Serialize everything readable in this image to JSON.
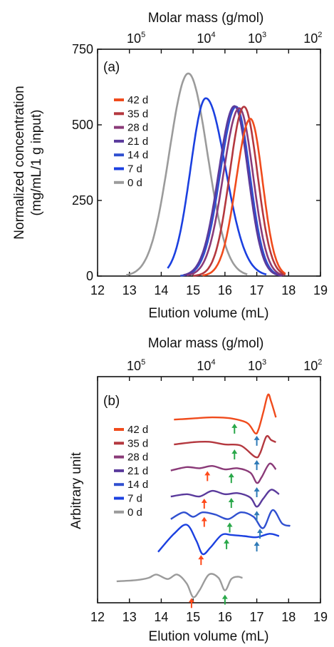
{
  "colors": {
    "42 d": "#f04b1c",
    "35 d": "#b4383f",
    "28 d": "#8a3a78",
    "21 d": "#5a3a9c",
    "14 d": "#3050d0",
    "7 d": "#1b40e0",
    "0 d": "#9b9b9b",
    "arrow_orange": "#ff4a1a",
    "arrow_green": "#2aa84a",
    "arrow_blue": "#2f7bb8"
  },
  "chart_data": [
    {
      "id": "a",
      "type": "line",
      "panel_label": "(a)",
      "xlabel": "Elution volume (mL)",
      "ylabel_line1": "Normalized concentration",
      "ylabel_line2": "(mg/mL/1 g input)",
      "top_axis_label": "Molar mass (g/mol)",
      "top_ticks": [
        {
          "base": "10",
          "exp": "5",
          "x": 13.3
        },
        {
          "base": "10",
          "exp": "4",
          "x": 15.5
        },
        {
          "base": "10",
          "exp": "3",
          "x": 17.1
        },
        {
          "base": "10",
          "exp": "2",
          "x": 18.85
        }
      ],
      "xlim": [
        12,
        19
      ],
      "ylim": [
        0,
        750
      ],
      "xticks": [
        12,
        13,
        14,
        15,
        16,
        17,
        18,
        19
      ],
      "yticks": [
        0,
        250,
        500,
        750
      ],
      "legend": [
        "42 d",
        "35 d",
        "28 d",
        "21 d",
        "14 d",
        "7 d",
        "0 d"
      ],
      "series": [
        {
          "name": "0 d",
          "peak_x": 14.85,
          "peak_y": 670,
          "wl": 0.6,
          "wr": 0.6,
          "xmin": 12.9,
          "xmax": 16.7
        },
        {
          "name": "7 d",
          "peak_x": 15.4,
          "peak_y": 588,
          "wl": 0.48,
          "wr": 0.62,
          "xmin": 14.2,
          "xmax": 17.3
        },
        {
          "name": "14 d",
          "peak_x": 16.35,
          "peak_y": 560,
          "wl": 0.5,
          "wr": 0.43,
          "xmin": 14.6,
          "xmax": 17.7
        },
        {
          "name": "21 d",
          "peak_x": 16.3,
          "peak_y": 562,
          "wl": 0.5,
          "wr": 0.43,
          "xmin": 14.7,
          "xmax": 17.8
        },
        {
          "name": "28 d",
          "peak_x": 16.45,
          "peak_y": 555,
          "wl": 0.5,
          "wr": 0.43,
          "xmin": 14.8,
          "xmax": 17.85
        },
        {
          "name": "35 d",
          "peak_x": 16.6,
          "peak_y": 560,
          "wl": 0.45,
          "wr": 0.42,
          "xmin": 15.0,
          "xmax": 17.9
        },
        {
          "name": "42 d",
          "peak_x": 16.8,
          "peak_y": 520,
          "wl": 0.45,
          "wr": 0.38,
          "xmin": 15.3,
          "xmax": 17.9
        }
      ]
    },
    {
      "id": "b",
      "type": "line",
      "panel_label": "(b)",
      "xlabel": "Elution volume (mL)",
      "ylabel": "Arbitrary unit",
      "top_axis_label": "Molar mass (g/mol)",
      "top_ticks": [
        {
          "base": "10",
          "exp": "5",
          "x": 13.3
        },
        {
          "base": "10",
          "exp": "4",
          "x": 15.5
        },
        {
          "base": "10",
          "exp": "3",
          "x": 17.1
        },
        {
          "base": "10",
          "exp": "2",
          "x": 18.85
        }
      ],
      "xlim": [
        12,
        19
      ],
      "ylim": [
        0,
        10
      ],
      "xticks": [
        12,
        13,
        14,
        15,
        16,
        17,
        18,
        19
      ],
      "legend": [
        "42 d",
        "35 d",
        "28 d",
        "21 d",
        "14 d",
        "7 d",
        "0 d"
      ],
      "series": [
        {
          "name": "42 d",
          "offset": 8.1,
          "points": [
            [
              14.4,
              0
            ],
            [
              15,
              0.05
            ],
            [
              15.6,
              0.1
            ],
            [
              16.2,
              0.05
            ],
            [
              16.7,
              -0.15
            ],
            [
              16.95,
              -0.6
            ],
            [
              17.05,
              -0.45
            ],
            [
              17.2,
              0.3
            ],
            [
              17.35,
              1.1
            ],
            [
              17.45,
              0.8
            ],
            [
              17.6,
              0.1
            ]
          ]
        },
        {
          "name": "35 d",
          "offset": 7.0,
          "points": [
            [
              14.4,
              0
            ],
            [
              15,
              0.1
            ],
            [
              15.5,
              0.12
            ],
            [
              16,
              0.0
            ],
            [
              16.5,
              -0.05
            ],
            [
              16.95,
              -0.55
            ],
            [
              17.1,
              -0.4
            ],
            [
              17.3,
              0.35
            ],
            [
              17.45,
              0.2
            ],
            [
              17.6,
              0.1
            ]
          ]
        },
        {
          "name": "28 d",
          "offset": 5.85,
          "points": [
            [
              14.3,
              0
            ],
            [
              14.8,
              0.15
            ],
            [
              15.2,
              0.1
            ],
            [
              15.6,
              0.2
            ],
            [
              16.0,
              0.05
            ],
            [
              16.4,
              0.1
            ],
            [
              16.8,
              -0.1
            ],
            [
              17.0,
              -0.55
            ],
            [
              17.15,
              -0.3
            ],
            [
              17.4,
              0.3
            ],
            [
              17.6,
              0.05
            ]
          ]
        },
        {
          "name": "21 d",
          "offset": 4.7,
          "points": [
            [
              14.3,
              0
            ],
            [
              14.8,
              0.1
            ],
            [
              15.2,
              0.0
            ],
            [
              15.6,
              0.25
            ],
            [
              16.0,
              0.1
            ],
            [
              16.4,
              0.15
            ],
            [
              16.8,
              -0.05
            ],
            [
              17.0,
              -0.45
            ],
            [
              17.2,
              -0.1
            ],
            [
              17.45,
              0.3
            ],
            [
              17.7,
              0.1
            ]
          ]
        },
        {
          "name": "14 d",
          "offset": 3.7,
          "points": [
            [
              14.3,
              0
            ],
            [
              14.7,
              0.3
            ],
            [
              15.0,
              0.1
            ],
            [
              15.3,
              0.3
            ],
            [
              15.7,
              0.2
            ],
            [
              16.1,
              0.0
            ],
            [
              16.5,
              0.3
            ],
            [
              16.9,
              0.1
            ],
            [
              17.2,
              -0.4
            ],
            [
              17.5,
              0.4
            ],
            [
              17.8,
              -0.2
            ],
            [
              18.05,
              -0.3
            ]
          ]
        },
        {
          "name": "7 d",
          "offset": 2.85,
          "points": [
            [
              13.9,
              -0.6
            ],
            [
              14.4,
              0.2
            ],
            [
              14.8,
              0.6
            ],
            [
              15.1,
              -0.1
            ],
            [
              15.3,
              -0.7
            ],
            [
              15.55,
              -0.4
            ],
            [
              15.9,
              0.15
            ],
            [
              16.2,
              0.15
            ],
            [
              16.6,
              0.1
            ],
            [
              17.0,
              0.05
            ],
            [
              17.4,
              0.2
            ],
            [
              17.7,
              0.1
            ]
          ]
        },
        {
          "name": "0 d",
          "offset": 0.95,
          "points": [
            [
              12.6,
              0
            ],
            [
              13.2,
              0.05
            ],
            [
              13.6,
              0.15
            ],
            [
              13.85,
              0.3
            ],
            [
              14.2,
              0.1
            ],
            [
              14.5,
              0.3
            ],
            [
              14.8,
              -0.1
            ],
            [
              15.0,
              -0.7
            ],
            [
              15.2,
              -0.4
            ],
            [
              15.5,
              0.3
            ],
            [
              15.8,
              0.15
            ],
            [
              16.0,
              -0.4
            ],
            [
              16.2,
              0.1
            ],
            [
              16.4,
              0.2
            ],
            [
              16.55,
              0.15
            ]
          ]
        }
      ],
      "arrows": [
        {
          "series": "42 d",
          "x": 16.3,
          "color": "arrow_green"
        },
        {
          "series": "42 d",
          "x": 17.0,
          "color": "arrow_blue"
        },
        {
          "series": "35 d",
          "x": 16.3,
          "color": "arrow_green"
        },
        {
          "series": "35 d",
          "x": 17.0,
          "color": "arrow_blue"
        },
        {
          "series": "28 d",
          "x": 15.45,
          "color": "arrow_orange"
        },
        {
          "series": "28 d",
          "x": 16.2,
          "color": "arrow_green"
        },
        {
          "series": "28 d",
          "x": 17.0,
          "color": "arrow_blue"
        },
        {
          "series": "21 d",
          "x": 15.35,
          "color": "arrow_orange"
        },
        {
          "series": "21 d",
          "x": 16.2,
          "color": "arrow_green"
        },
        {
          "series": "21 d",
          "x": 17.0,
          "color": "arrow_blue"
        },
        {
          "series": "14 d",
          "x": 15.35,
          "color": "arrow_orange"
        },
        {
          "series": "14 d",
          "x": 16.15,
          "color": "arrow_green"
        },
        {
          "series": "14 d",
          "x": 17.1,
          "color": "arrow_blue"
        },
        {
          "series": "7 d",
          "x": 15.25,
          "color": "arrow_orange"
        },
        {
          "series": "7 d",
          "x": 16.05,
          "color": "arrow_green"
        },
        {
          "series": "7 d",
          "x": 17.0,
          "color": "arrow_blue"
        },
        {
          "series": "0 d",
          "x": 14.95,
          "color": "arrow_orange"
        },
        {
          "series": "0 d",
          "x": 16.0,
          "color": "arrow_green"
        }
      ]
    }
  ]
}
